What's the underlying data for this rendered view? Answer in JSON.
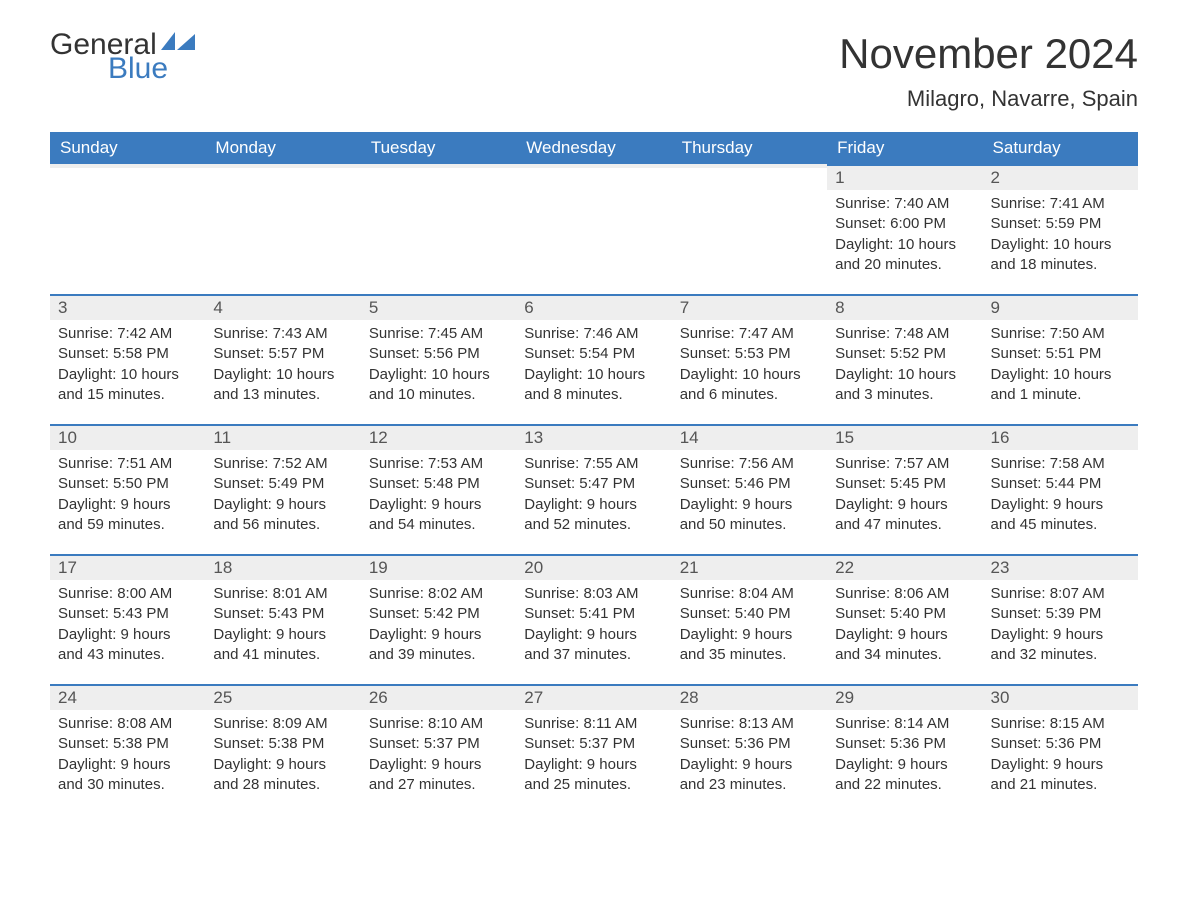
{
  "logo": {
    "text_general": "General",
    "text_blue": "Blue",
    "sail_color": "#3b7bbf"
  },
  "header": {
    "month_title": "November 2024",
    "location": "Milagro, Navarre, Spain"
  },
  "colors": {
    "header_bg": "#3b7bbf",
    "header_text": "#ffffff",
    "daynum_bg": "#eeeeee",
    "daynum_border": "#3b7bbf",
    "body_text": "#333333"
  },
  "calendar": {
    "day_headers": [
      "Sunday",
      "Monday",
      "Tuesday",
      "Wednesday",
      "Thursday",
      "Friday",
      "Saturday"
    ],
    "weeks": [
      [
        {
          "n": "",
          "sunrise": "",
          "sunset": "",
          "daylight": ""
        },
        {
          "n": "",
          "sunrise": "",
          "sunset": "",
          "daylight": ""
        },
        {
          "n": "",
          "sunrise": "",
          "sunset": "",
          "daylight": ""
        },
        {
          "n": "",
          "sunrise": "",
          "sunset": "",
          "daylight": ""
        },
        {
          "n": "",
          "sunrise": "",
          "sunset": "",
          "daylight": ""
        },
        {
          "n": "1",
          "sunrise": "Sunrise: 7:40 AM",
          "sunset": "Sunset: 6:00 PM",
          "daylight": "Daylight: 10 hours and 20 minutes."
        },
        {
          "n": "2",
          "sunrise": "Sunrise: 7:41 AM",
          "sunset": "Sunset: 5:59 PM",
          "daylight": "Daylight: 10 hours and 18 minutes."
        }
      ],
      [
        {
          "n": "3",
          "sunrise": "Sunrise: 7:42 AM",
          "sunset": "Sunset: 5:58 PM",
          "daylight": "Daylight: 10 hours and 15 minutes."
        },
        {
          "n": "4",
          "sunrise": "Sunrise: 7:43 AM",
          "sunset": "Sunset: 5:57 PM",
          "daylight": "Daylight: 10 hours and 13 minutes."
        },
        {
          "n": "5",
          "sunrise": "Sunrise: 7:45 AM",
          "sunset": "Sunset: 5:56 PM",
          "daylight": "Daylight: 10 hours and 10 minutes."
        },
        {
          "n": "6",
          "sunrise": "Sunrise: 7:46 AM",
          "sunset": "Sunset: 5:54 PM",
          "daylight": "Daylight: 10 hours and 8 minutes."
        },
        {
          "n": "7",
          "sunrise": "Sunrise: 7:47 AM",
          "sunset": "Sunset: 5:53 PM",
          "daylight": "Daylight: 10 hours and 6 minutes."
        },
        {
          "n": "8",
          "sunrise": "Sunrise: 7:48 AM",
          "sunset": "Sunset: 5:52 PM",
          "daylight": "Daylight: 10 hours and 3 minutes."
        },
        {
          "n": "9",
          "sunrise": "Sunrise: 7:50 AM",
          "sunset": "Sunset: 5:51 PM",
          "daylight": "Daylight: 10 hours and 1 minute."
        }
      ],
      [
        {
          "n": "10",
          "sunrise": "Sunrise: 7:51 AM",
          "sunset": "Sunset: 5:50 PM",
          "daylight": "Daylight: 9 hours and 59 minutes."
        },
        {
          "n": "11",
          "sunrise": "Sunrise: 7:52 AM",
          "sunset": "Sunset: 5:49 PM",
          "daylight": "Daylight: 9 hours and 56 minutes."
        },
        {
          "n": "12",
          "sunrise": "Sunrise: 7:53 AM",
          "sunset": "Sunset: 5:48 PM",
          "daylight": "Daylight: 9 hours and 54 minutes."
        },
        {
          "n": "13",
          "sunrise": "Sunrise: 7:55 AM",
          "sunset": "Sunset: 5:47 PM",
          "daylight": "Daylight: 9 hours and 52 minutes."
        },
        {
          "n": "14",
          "sunrise": "Sunrise: 7:56 AM",
          "sunset": "Sunset: 5:46 PM",
          "daylight": "Daylight: 9 hours and 50 minutes."
        },
        {
          "n": "15",
          "sunrise": "Sunrise: 7:57 AM",
          "sunset": "Sunset: 5:45 PM",
          "daylight": "Daylight: 9 hours and 47 minutes."
        },
        {
          "n": "16",
          "sunrise": "Sunrise: 7:58 AM",
          "sunset": "Sunset: 5:44 PM",
          "daylight": "Daylight: 9 hours and 45 minutes."
        }
      ],
      [
        {
          "n": "17",
          "sunrise": "Sunrise: 8:00 AM",
          "sunset": "Sunset: 5:43 PM",
          "daylight": "Daylight: 9 hours and 43 minutes."
        },
        {
          "n": "18",
          "sunrise": "Sunrise: 8:01 AM",
          "sunset": "Sunset: 5:43 PM",
          "daylight": "Daylight: 9 hours and 41 minutes."
        },
        {
          "n": "19",
          "sunrise": "Sunrise: 8:02 AM",
          "sunset": "Sunset: 5:42 PM",
          "daylight": "Daylight: 9 hours and 39 minutes."
        },
        {
          "n": "20",
          "sunrise": "Sunrise: 8:03 AM",
          "sunset": "Sunset: 5:41 PM",
          "daylight": "Daylight: 9 hours and 37 minutes."
        },
        {
          "n": "21",
          "sunrise": "Sunrise: 8:04 AM",
          "sunset": "Sunset: 5:40 PM",
          "daylight": "Daylight: 9 hours and 35 minutes."
        },
        {
          "n": "22",
          "sunrise": "Sunrise: 8:06 AM",
          "sunset": "Sunset: 5:40 PM",
          "daylight": "Daylight: 9 hours and 34 minutes."
        },
        {
          "n": "23",
          "sunrise": "Sunrise: 8:07 AM",
          "sunset": "Sunset: 5:39 PM",
          "daylight": "Daylight: 9 hours and 32 minutes."
        }
      ],
      [
        {
          "n": "24",
          "sunrise": "Sunrise: 8:08 AM",
          "sunset": "Sunset: 5:38 PM",
          "daylight": "Daylight: 9 hours and 30 minutes."
        },
        {
          "n": "25",
          "sunrise": "Sunrise: 8:09 AM",
          "sunset": "Sunset: 5:38 PM",
          "daylight": "Daylight: 9 hours and 28 minutes."
        },
        {
          "n": "26",
          "sunrise": "Sunrise: 8:10 AM",
          "sunset": "Sunset: 5:37 PM",
          "daylight": "Daylight: 9 hours and 27 minutes."
        },
        {
          "n": "27",
          "sunrise": "Sunrise: 8:11 AM",
          "sunset": "Sunset: 5:37 PM",
          "daylight": "Daylight: 9 hours and 25 minutes."
        },
        {
          "n": "28",
          "sunrise": "Sunrise: 8:13 AM",
          "sunset": "Sunset: 5:36 PM",
          "daylight": "Daylight: 9 hours and 23 minutes."
        },
        {
          "n": "29",
          "sunrise": "Sunrise: 8:14 AM",
          "sunset": "Sunset: 5:36 PM",
          "daylight": "Daylight: 9 hours and 22 minutes."
        },
        {
          "n": "30",
          "sunrise": "Sunrise: 8:15 AM",
          "sunset": "Sunset: 5:36 PM",
          "daylight": "Daylight: 9 hours and 21 minutes."
        }
      ]
    ]
  }
}
